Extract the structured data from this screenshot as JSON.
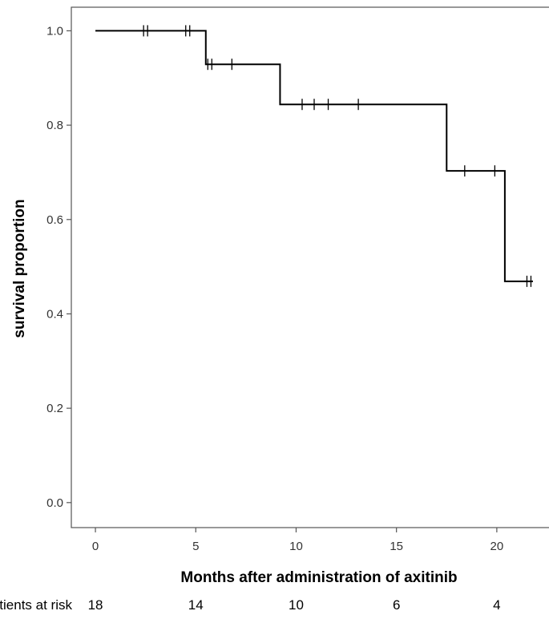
{
  "chart_data": {
    "type": "line",
    "title": "",
    "xlabel": "Months after administration of axitinib",
    "ylabel": "survival proportion",
    "xlim": [
      -1.2,
      22.8
    ],
    "ylim": [
      -0.053,
      1.05
    ],
    "x_ticks": [
      0,
      5,
      10,
      15,
      20
    ],
    "x_tick_labels": [
      "0",
      "5",
      "10",
      "15",
      "20"
    ],
    "y_ticks": [
      0.0,
      0.2,
      0.4,
      0.6,
      0.8,
      1.0
    ],
    "y_tick_labels": [
      "0.0",
      "0.2",
      "0.4",
      "0.6",
      "0.8",
      "1.0"
    ],
    "grid": false,
    "series": [
      {
        "style": "step",
        "steps": [
          {
            "x": 0,
            "y": 1.0
          },
          {
            "x": 5.5,
            "y": 0.929
          },
          {
            "x": 9.2,
            "y": 0.844
          },
          {
            "x": 17.5,
            "y": 0.703
          },
          {
            "x": 20.4,
            "y": 0.469
          },
          {
            "x": 21.8,
            "y": 0.469
          }
        ],
        "censored": [
          {
            "x": 2.4,
            "y": 1.0
          },
          {
            "x": 2.6,
            "y": 1.0
          },
          {
            "x": 4.5,
            "y": 1.0
          },
          {
            "x": 4.7,
            "y": 1.0
          },
          {
            "x": 5.6,
            "y": 0.929
          },
          {
            "x": 5.8,
            "y": 0.929
          },
          {
            "x": 6.8,
            "y": 0.929
          },
          {
            "x": 10.3,
            "y": 0.844
          },
          {
            "x": 10.9,
            "y": 0.844
          },
          {
            "x": 11.6,
            "y": 0.844
          },
          {
            "x": 13.1,
            "y": 0.844
          },
          {
            "x": 18.4,
            "y": 0.703
          },
          {
            "x": 19.9,
            "y": 0.703
          },
          {
            "x": 21.5,
            "y": 0.469
          },
          {
            "x": 21.7,
            "y": 0.469
          }
        ]
      }
    ],
    "risk_table": {
      "label": "Patients at risk",
      "x": [
        0,
        5,
        10,
        15,
        20
      ],
      "values": [
        "18",
        "14",
        "10",
        "6",
        "4"
      ]
    }
  }
}
